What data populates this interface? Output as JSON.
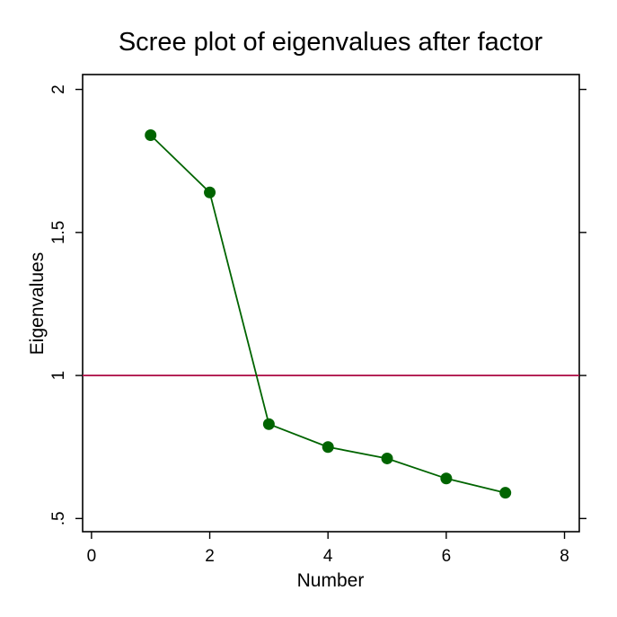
{
  "chart_data": {
    "type": "line",
    "title": "Scree plot of eigenvalues after factor",
    "xlabel": "Number",
    "ylabel": "Eigenvalues",
    "xlim": [
      -0.15,
      8.25
    ],
    "ylim": [
      0.454,
      2.052
    ],
    "xticks": [
      0,
      2,
      4,
      6,
      8
    ],
    "xtick_labels": [
      "0",
      "2",
      "4",
      "6",
      "8"
    ],
    "yticks": [
      0.5,
      1,
      1.5,
      2
    ],
    "ytick_labels": [
      ".5",
      "1",
      "1.5",
      "2"
    ],
    "grid": false,
    "legend": "none",
    "reference_line": {
      "y": 1,
      "color": "#b0174d"
    },
    "series": [
      {
        "x": [
          1,
          2,
          3,
          4,
          5,
          6,
          7
        ],
        "values": [
          1.84,
          1.64,
          0.83,
          0.75,
          0.71,
          0.64,
          0.59
        ],
        "color": "#006400"
      }
    ]
  }
}
